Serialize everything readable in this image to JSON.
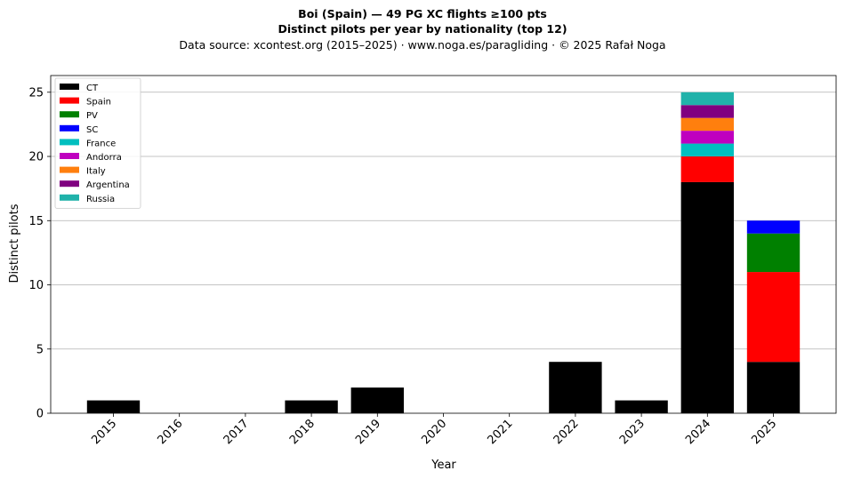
{
  "header": {
    "title_line1": "Boi (Spain)  —  49 PG XC flights ≥100 pts",
    "title_line2": "Distinct pilots per year by nationality (top 12)",
    "subtitle": "Data source: xcontest.org (2015–2025)  ·  www.noga.es/paragliding  ·  © 2025 Rafał Noga"
  },
  "chart_data": {
    "type": "bar",
    "stacked": true,
    "title": "Boi (Spain)  —  49 PG XC flights ≥100 pts",
    "subtitle": "Distinct pilots per year by nationality (top 12)",
    "xlabel": "Year",
    "ylabel": "Distinct pilots",
    "categories": [
      "2015",
      "2016",
      "2017",
      "2018",
      "2019",
      "2020",
      "2021",
      "2022",
      "2023",
      "2024",
      "2025"
    ],
    "ylim": [
      0,
      26.3
    ],
    "yticks": [
      0,
      5,
      10,
      15,
      20,
      25
    ],
    "grid": "y",
    "legend_position": "top-left",
    "series": [
      {
        "name": "CT",
        "color": "#000000",
        "values": [
          1,
          0,
          0,
          1,
          2,
          0,
          0,
          4,
          1,
          18,
          4
        ]
      },
      {
        "name": "Spain",
        "color": "#ff0000",
        "values": [
          0,
          0,
          0,
          0,
          0,
          0,
          0,
          0,
          0,
          2,
          7
        ]
      },
      {
        "name": "PV",
        "color": "#008000",
        "values": [
          0,
          0,
          0,
          0,
          0,
          0,
          0,
          0,
          0,
          0,
          3
        ]
      },
      {
        "name": "SC",
        "color": "#0000ff",
        "values": [
          0,
          0,
          0,
          0,
          0,
          0,
          0,
          0,
          0,
          0,
          1
        ]
      },
      {
        "name": "France",
        "color": "#00bfbf",
        "values": [
          0,
          0,
          0,
          0,
          0,
          0,
          0,
          0,
          0,
          1,
          0
        ]
      },
      {
        "name": "Andorra",
        "color": "#bf00bf",
        "values": [
          0,
          0,
          0,
          0,
          0,
          0,
          0,
          0,
          0,
          1,
          0
        ]
      },
      {
        "name": "Italy",
        "color": "#ff7f0e",
        "values": [
          0,
          0,
          0,
          0,
          0,
          0,
          0,
          0,
          0,
          1,
          0
        ]
      },
      {
        "name": "Argentina",
        "color": "#800080",
        "values": [
          0,
          0,
          0,
          0,
          0,
          0,
          0,
          0,
          0,
          1,
          0
        ]
      },
      {
        "name": "Russia",
        "color": "#20b2aa",
        "values": [
          0,
          0,
          0,
          0,
          0,
          0,
          0,
          0,
          0,
          1,
          0
        ]
      }
    ]
  }
}
